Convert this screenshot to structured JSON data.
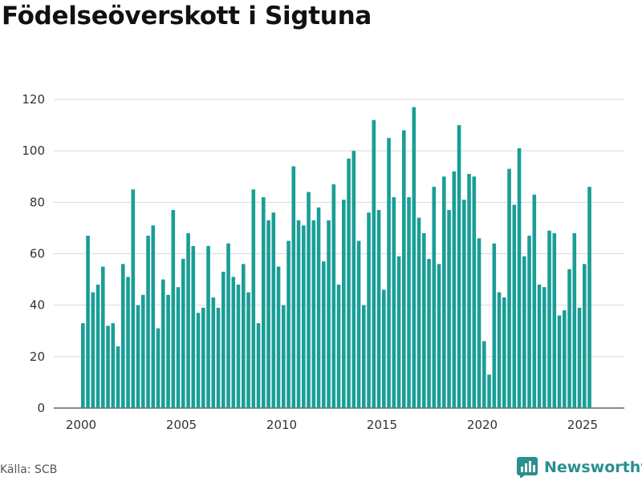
{
  "chart_data": {
    "type": "bar",
    "title": "Födelseöverskott i Sigtuna",
    "xlabel": "",
    "ylabel": "",
    "ylim": [
      0,
      120
    ],
    "yticks": [
      0,
      20,
      40,
      60,
      80,
      100,
      120
    ],
    "xticks": [
      2000,
      2005,
      2010,
      2015,
      2020,
      2025
    ],
    "grid": true,
    "bar_color": "#1a9e96",
    "x_start": 2000.0,
    "x_step": 0.25,
    "values": [
      33,
      67,
      45,
      48,
      55,
      32,
      33,
      24,
      56,
      51,
      85,
      40,
      44,
      67,
      71,
      31,
      50,
      44,
      77,
      47,
      58,
      68,
      63,
      37,
      39,
      63,
      43,
      39,
      53,
      64,
      51,
      48,
      56,
      45,
      85,
      33,
      82,
      73,
      76,
      55,
      40,
      65,
      94,
      73,
      71,
      84,
      73,
      78,
      57,
      73,
      87,
      48,
      81,
      97,
      100,
      65,
      40,
      76,
      112,
      77,
      46,
      105,
      82,
      59,
      108,
      82,
      117,
      74,
      68,
      58,
      86,
      56,
      90,
      77,
      92,
      110,
      81,
      91,
      90,
      66,
      26,
      13,
      64,
      45,
      43,
      93,
      79,
      101,
      59,
      67,
      83,
      48,
      47,
      69,
      68,
      36,
      38,
      54,
      68,
      39,
      56,
      86
    ]
  },
  "source": "Källa: SCB",
  "brand": {
    "name": "Newsworthy",
    "color": "#2a8f8f"
  }
}
